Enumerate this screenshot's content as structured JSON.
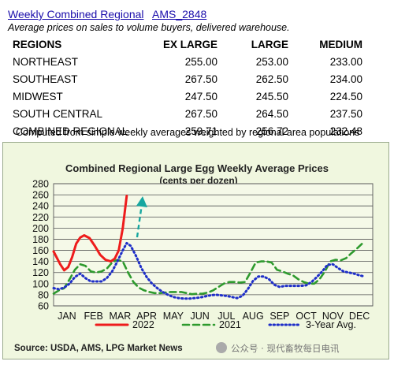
{
  "header": {
    "link_text": "Weekly Combined Regional",
    "code_text": "AMS_2848",
    "subtitle": "Average prices on sales to volume buyers, delivered warehouse."
  },
  "table": {
    "columns": [
      "REGIONS",
      "EX LARGE",
      "LARGE",
      "MEDIUM"
    ],
    "rows": [
      [
        "NORTHEAST",
        "255.00",
        "253.00",
        "233.00"
      ],
      [
        "SOUTHEAST",
        "267.50",
        "262.50",
        "234.00"
      ],
      [
        "MIDWEST",
        "247.50",
        "245.50",
        "224.50"
      ],
      [
        "SOUTH CENTRAL",
        "267.50",
        "264.50",
        "237.50"
      ],
      [
        "COMBINED REGIONAL",
        "259.71",
        "256.72",
        "232.48"
      ]
    ],
    "note": "Computed from simple weekly averages weighted by regional area populations"
  },
  "chart_data": {
    "type": "line",
    "title": "Combined Regional Large Egg Weekly Average Prices",
    "subtitle": "(cents per dozen)",
    "ylim": [
      60,
      280
    ],
    "yticks": [
      60,
      80,
      100,
      120,
      140,
      160,
      180,
      200,
      220,
      240,
      260,
      280
    ],
    "categories": [
      "JAN",
      "FEB",
      "MAR",
      "APR",
      "MAY",
      "JUN",
      "JUL",
      "AUG",
      "SEP",
      "OCT",
      "NOV",
      "DEC"
    ],
    "grid": true,
    "legend_position": "bottom",
    "series": [
      {
        "name": "2022",
        "color": "#ee1c1c",
        "style": "solid",
        "points": [
          [
            0.0,
            158
          ],
          [
            0.25,
            135
          ],
          [
            0.4,
            124
          ],
          [
            0.55,
            130
          ],
          [
            0.7,
            148
          ],
          [
            0.85,
            172
          ],
          [
            1.0,
            183
          ],
          [
            1.15,
            187
          ],
          [
            1.35,
            182
          ],
          [
            1.55,
            168
          ],
          [
            1.75,
            152
          ],
          [
            1.95,
            143
          ],
          [
            2.15,
            140
          ],
          [
            2.3,
            145
          ],
          [
            2.45,
            160
          ],
          [
            2.6,
            200
          ],
          [
            2.75,
            258
          ]
        ]
      },
      {
        "name": "2021",
        "color": "#2e9a2e",
        "style": "dashed",
        "points": [
          [
            0.0,
            82
          ],
          [
            0.2,
            88
          ],
          [
            0.4,
            92
          ],
          [
            0.6,
            108
          ],
          [
            0.8,
            125
          ],
          [
            1.0,
            135
          ],
          [
            1.2,
            132
          ],
          [
            1.4,
            122
          ],
          [
            1.6,
            120
          ],
          [
            1.8,
            122
          ],
          [
            2.0,
            127
          ],
          [
            2.2,
            138
          ],
          [
            2.4,
            143
          ],
          [
            2.6,
            140
          ],
          [
            2.8,
            120
          ],
          [
            3.0,
            103
          ],
          [
            3.2,
            93
          ],
          [
            3.4,
            88
          ],
          [
            3.6,
            85
          ],
          [
            3.8,
            83
          ],
          [
            4.0,
            83
          ],
          [
            4.2,
            84
          ],
          [
            4.4,
            85
          ],
          [
            4.6,
            85
          ],
          [
            4.8,
            85
          ],
          [
            5.0,
            83
          ],
          [
            5.2,
            81
          ],
          [
            5.4,
            82
          ],
          [
            5.6,
            82
          ],
          [
            5.8,
            84
          ],
          [
            6.0,
            88
          ],
          [
            6.2,
            94
          ],
          [
            6.4,
            100
          ],
          [
            6.6,
            103
          ],
          [
            6.8,
            103
          ],
          [
            7.0,
            102
          ],
          [
            7.2,
            103
          ],
          [
            7.4,
            120
          ],
          [
            7.6,
            138
          ],
          [
            7.8,
            140
          ],
          [
            8.0,
            140
          ],
          [
            8.2,
            138
          ],
          [
            8.4,
            125
          ],
          [
            8.6,
            122
          ],
          [
            8.8,
            118
          ],
          [
            9.0,
            115
          ],
          [
            9.2,
            108
          ],
          [
            9.4,
            103
          ],
          [
            9.6,
            100
          ],
          [
            9.8,
            100
          ],
          [
            10.0,
            108
          ],
          [
            10.2,
            122
          ],
          [
            10.4,
            140
          ],
          [
            10.6,
            143
          ],
          [
            10.8,
            142
          ],
          [
            11.0,
            146
          ],
          [
            11.2,
            155
          ],
          [
            11.4,
            163
          ],
          [
            11.6,
            172
          ]
        ]
      },
      {
        "name": "3-Year Avg.",
        "color": "#1f2fc8",
        "style": "dotted",
        "points": [
          [
            0.0,
            92
          ],
          [
            0.2,
            90
          ],
          [
            0.4,
            93
          ],
          [
            0.6,
            100
          ],
          [
            0.8,
            112
          ],
          [
            1.0,
            118
          ],
          [
            1.2,
            110
          ],
          [
            1.4,
            104
          ],
          [
            1.6,
            104
          ],
          [
            1.8,
            104
          ],
          [
            2.0,
            110
          ],
          [
            2.2,
            122
          ],
          [
            2.4,
            140
          ],
          [
            2.6,
            160
          ],
          [
            2.75,
            173
          ],
          [
            2.9,
            168
          ],
          [
            3.1,
            150
          ],
          [
            3.3,
            128
          ],
          [
            3.5,
            112
          ],
          [
            3.7,
            100
          ],
          [
            3.9,
            92
          ],
          [
            4.1,
            85
          ],
          [
            4.3,
            80
          ],
          [
            4.5,
            76
          ],
          [
            4.7,
            74
          ],
          [
            4.9,
            73
          ],
          [
            5.1,
            73
          ],
          [
            5.3,
            74
          ],
          [
            5.5,
            75
          ],
          [
            5.7,
            77
          ],
          [
            5.9,
            79
          ],
          [
            6.1,
            80
          ],
          [
            6.3,
            79
          ],
          [
            6.5,
            78
          ],
          [
            6.7,
            76
          ],
          [
            6.9,
            74
          ],
          [
            7.1,
            78
          ],
          [
            7.3,
            90
          ],
          [
            7.5,
            105
          ],
          [
            7.7,
            113
          ],
          [
            7.9,
            113
          ],
          [
            8.1,
            108
          ],
          [
            8.3,
            98
          ],
          [
            8.5,
            94
          ],
          [
            8.7,
            96
          ],
          [
            8.9,
            96
          ],
          [
            9.1,
            96
          ],
          [
            9.3,
            96
          ],
          [
            9.5,
            97
          ],
          [
            9.7,
            103
          ],
          [
            9.9,
            112
          ],
          [
            10.1,
            122
          ],
          [
            10.3,
            134
          ],
          [
            10.5,
            135
          ],
          [
            10.7,
            128
          ],
          [
            10.9,
            122
          ],
          [
            11.1,
            120
          ],
          [
            11.3,
            118
          ],
          [
            11.5,
            115
          ],
          [
            11.7,
            113
          ]
        ]
      }
    ],
    "source": "Source: USDA, AMS, LPG  Market News",
    "watermark": "公众号 · 现代畜牧每日电讯"
  }
}
